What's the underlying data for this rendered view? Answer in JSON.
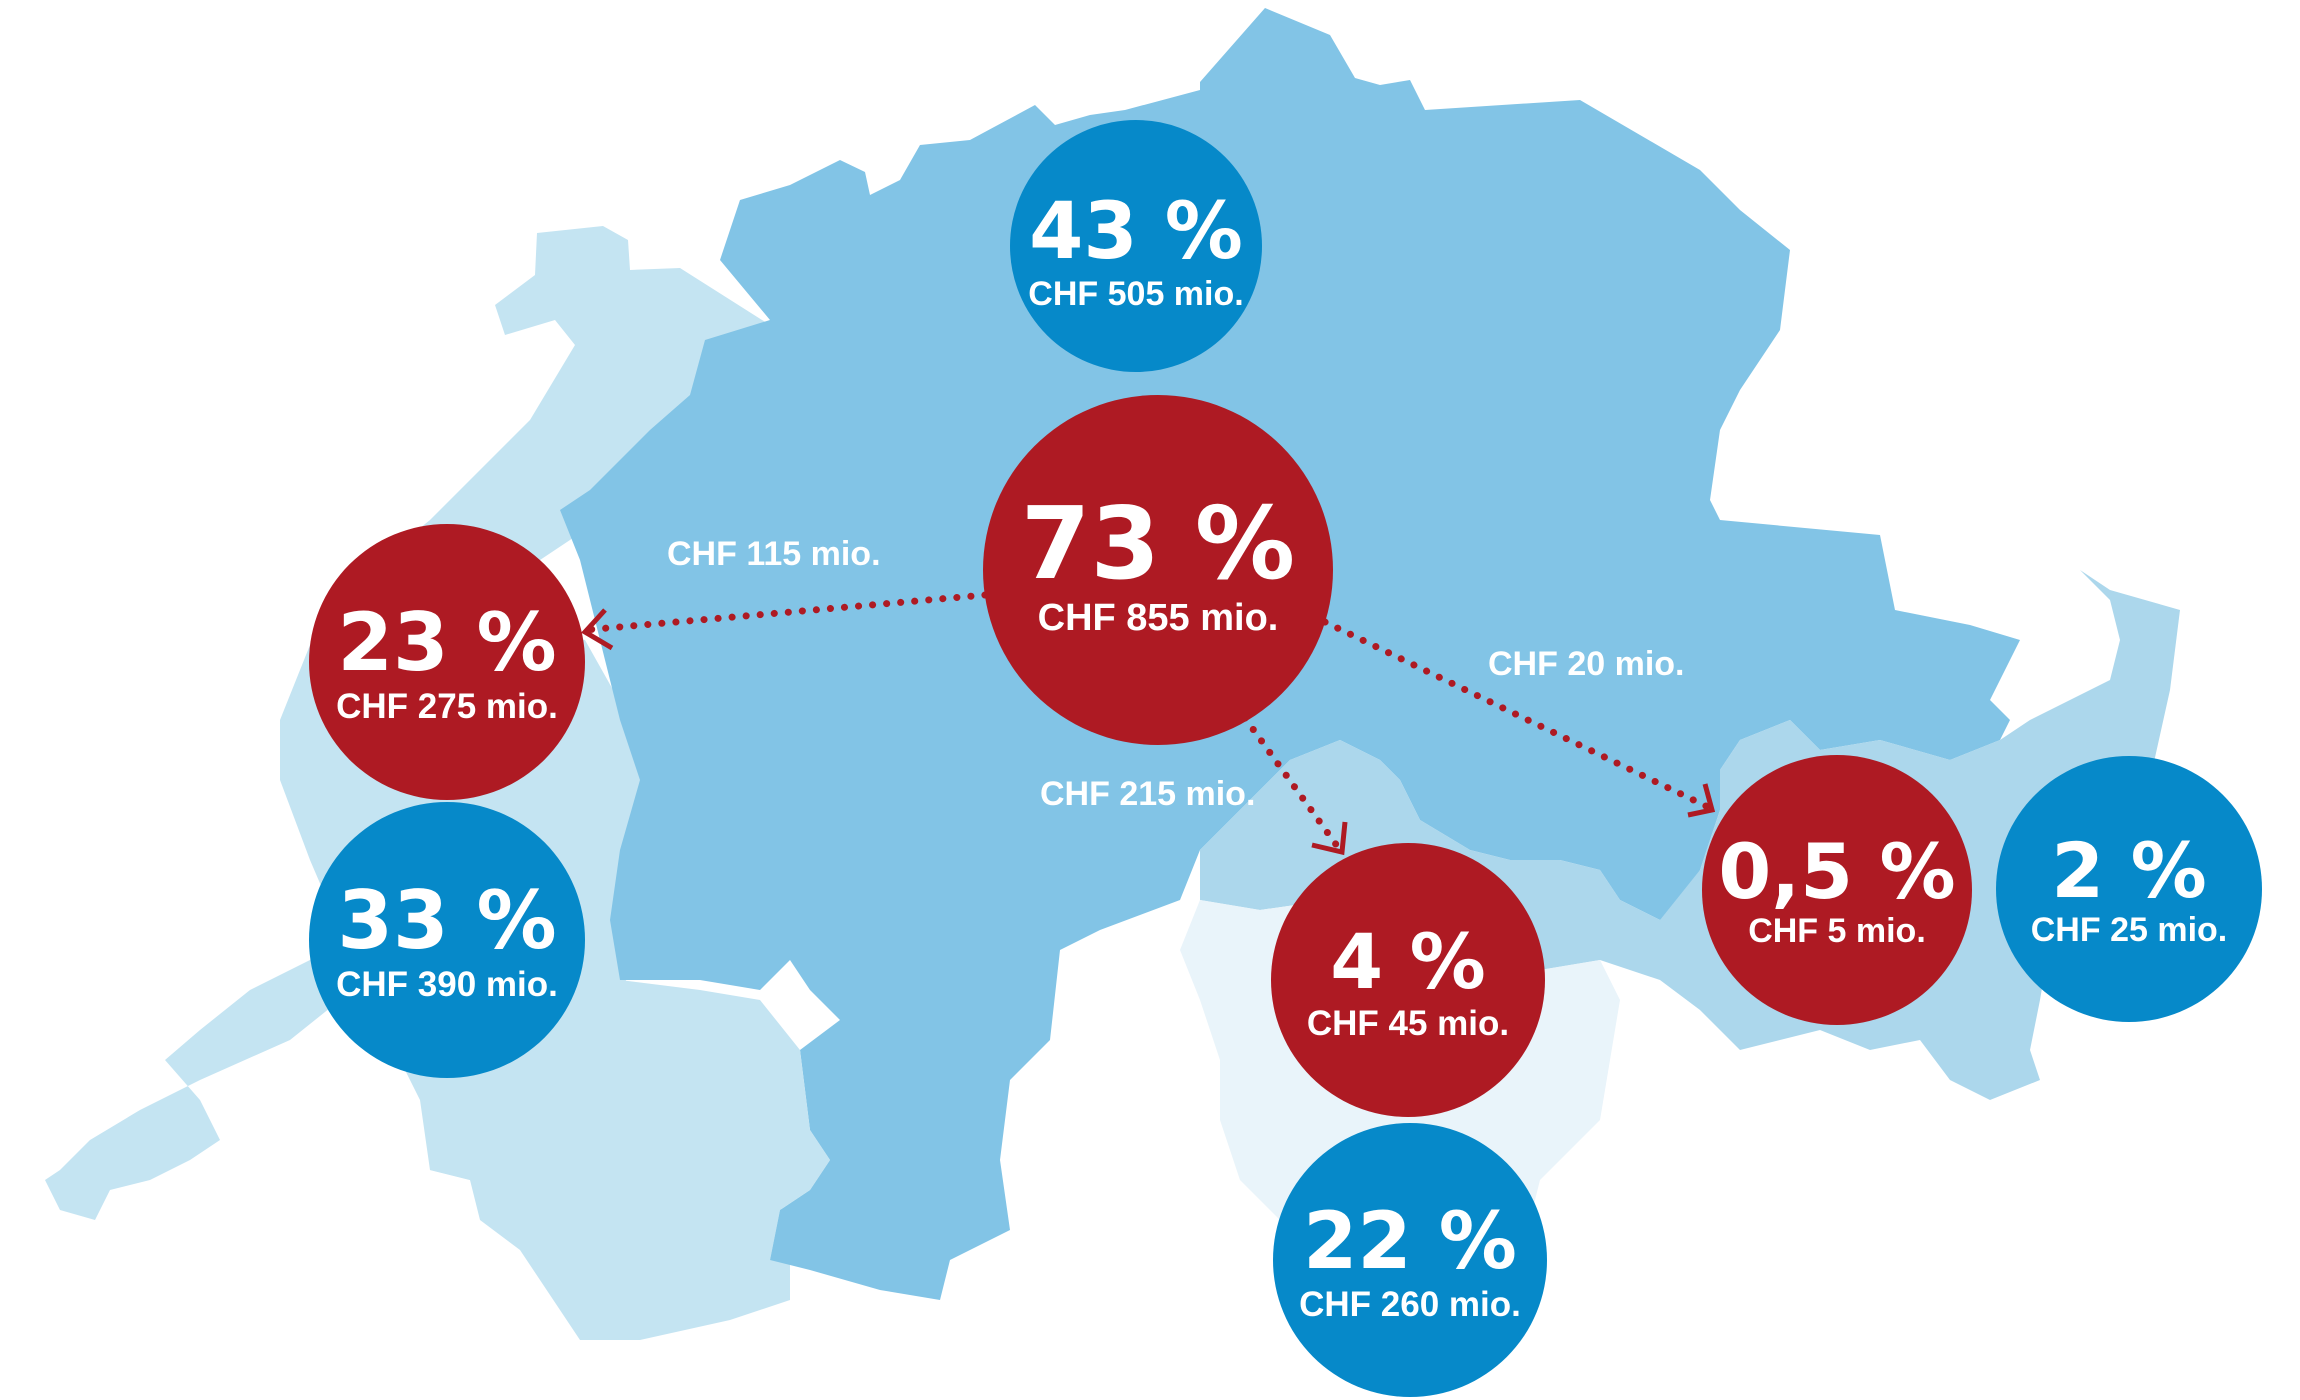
{
  "colors": {
    "region_main": "#82c4e6",
    "region_west": "#c4e4f2",
    "region_south": "#e9f4fa",
    "region_valais": "#acd7ec",
    "red": "#ae1a23",
    "blue": "#0689c9",
    "flow_arrow": "#ae1a23"
  },
  "regions": [
    {
      "name": "german-speaking",
      "icon": "region-shape"
    },
    {
      "name": "french-speaking",
      "icon": "region-shape"
    },
    {
      "name": "italian-speaking",
      "icon": "region-shape"
    },
    {
      "name": "romansh-speaking",
      "icon": "region-shape"
    }
  ],
  "bubbles": {
    "central_red": {
      "pct": "73 %",
      "chf": "CHF 855 mio."
    },
    "north_blue": {
      "pct": "43 %",
      "chf": "CHF 505 mio."
    },
    "west_red": {
      "pct": "23 %",
      "chf": "CHF 275 mio."
    },
    "west_blue": {
      "pct": "33 %",
      "chf": "CHF 390 mio."
    },
    "south_red": {
      "pct": "4 %",
      "chf": "CHF 45 mio."
    },
    "south_blue": {
      "pct": "22 %",
      "chf": "CHF 260 mio."
    },
    "east_red": {
      "pct": "0,5 %",
      "chf": "CHF 5 mio."
    },
    "east_blue": {
      "pct": "2 %",
      "chf": "CHF 25 mio."
    }
  },
  "flows": {
    "to_west": "CHF 115 mio.",
    "to_south": "CHF 215 mio.",
    "to_east": "CHF 20 mio."
  }
}
